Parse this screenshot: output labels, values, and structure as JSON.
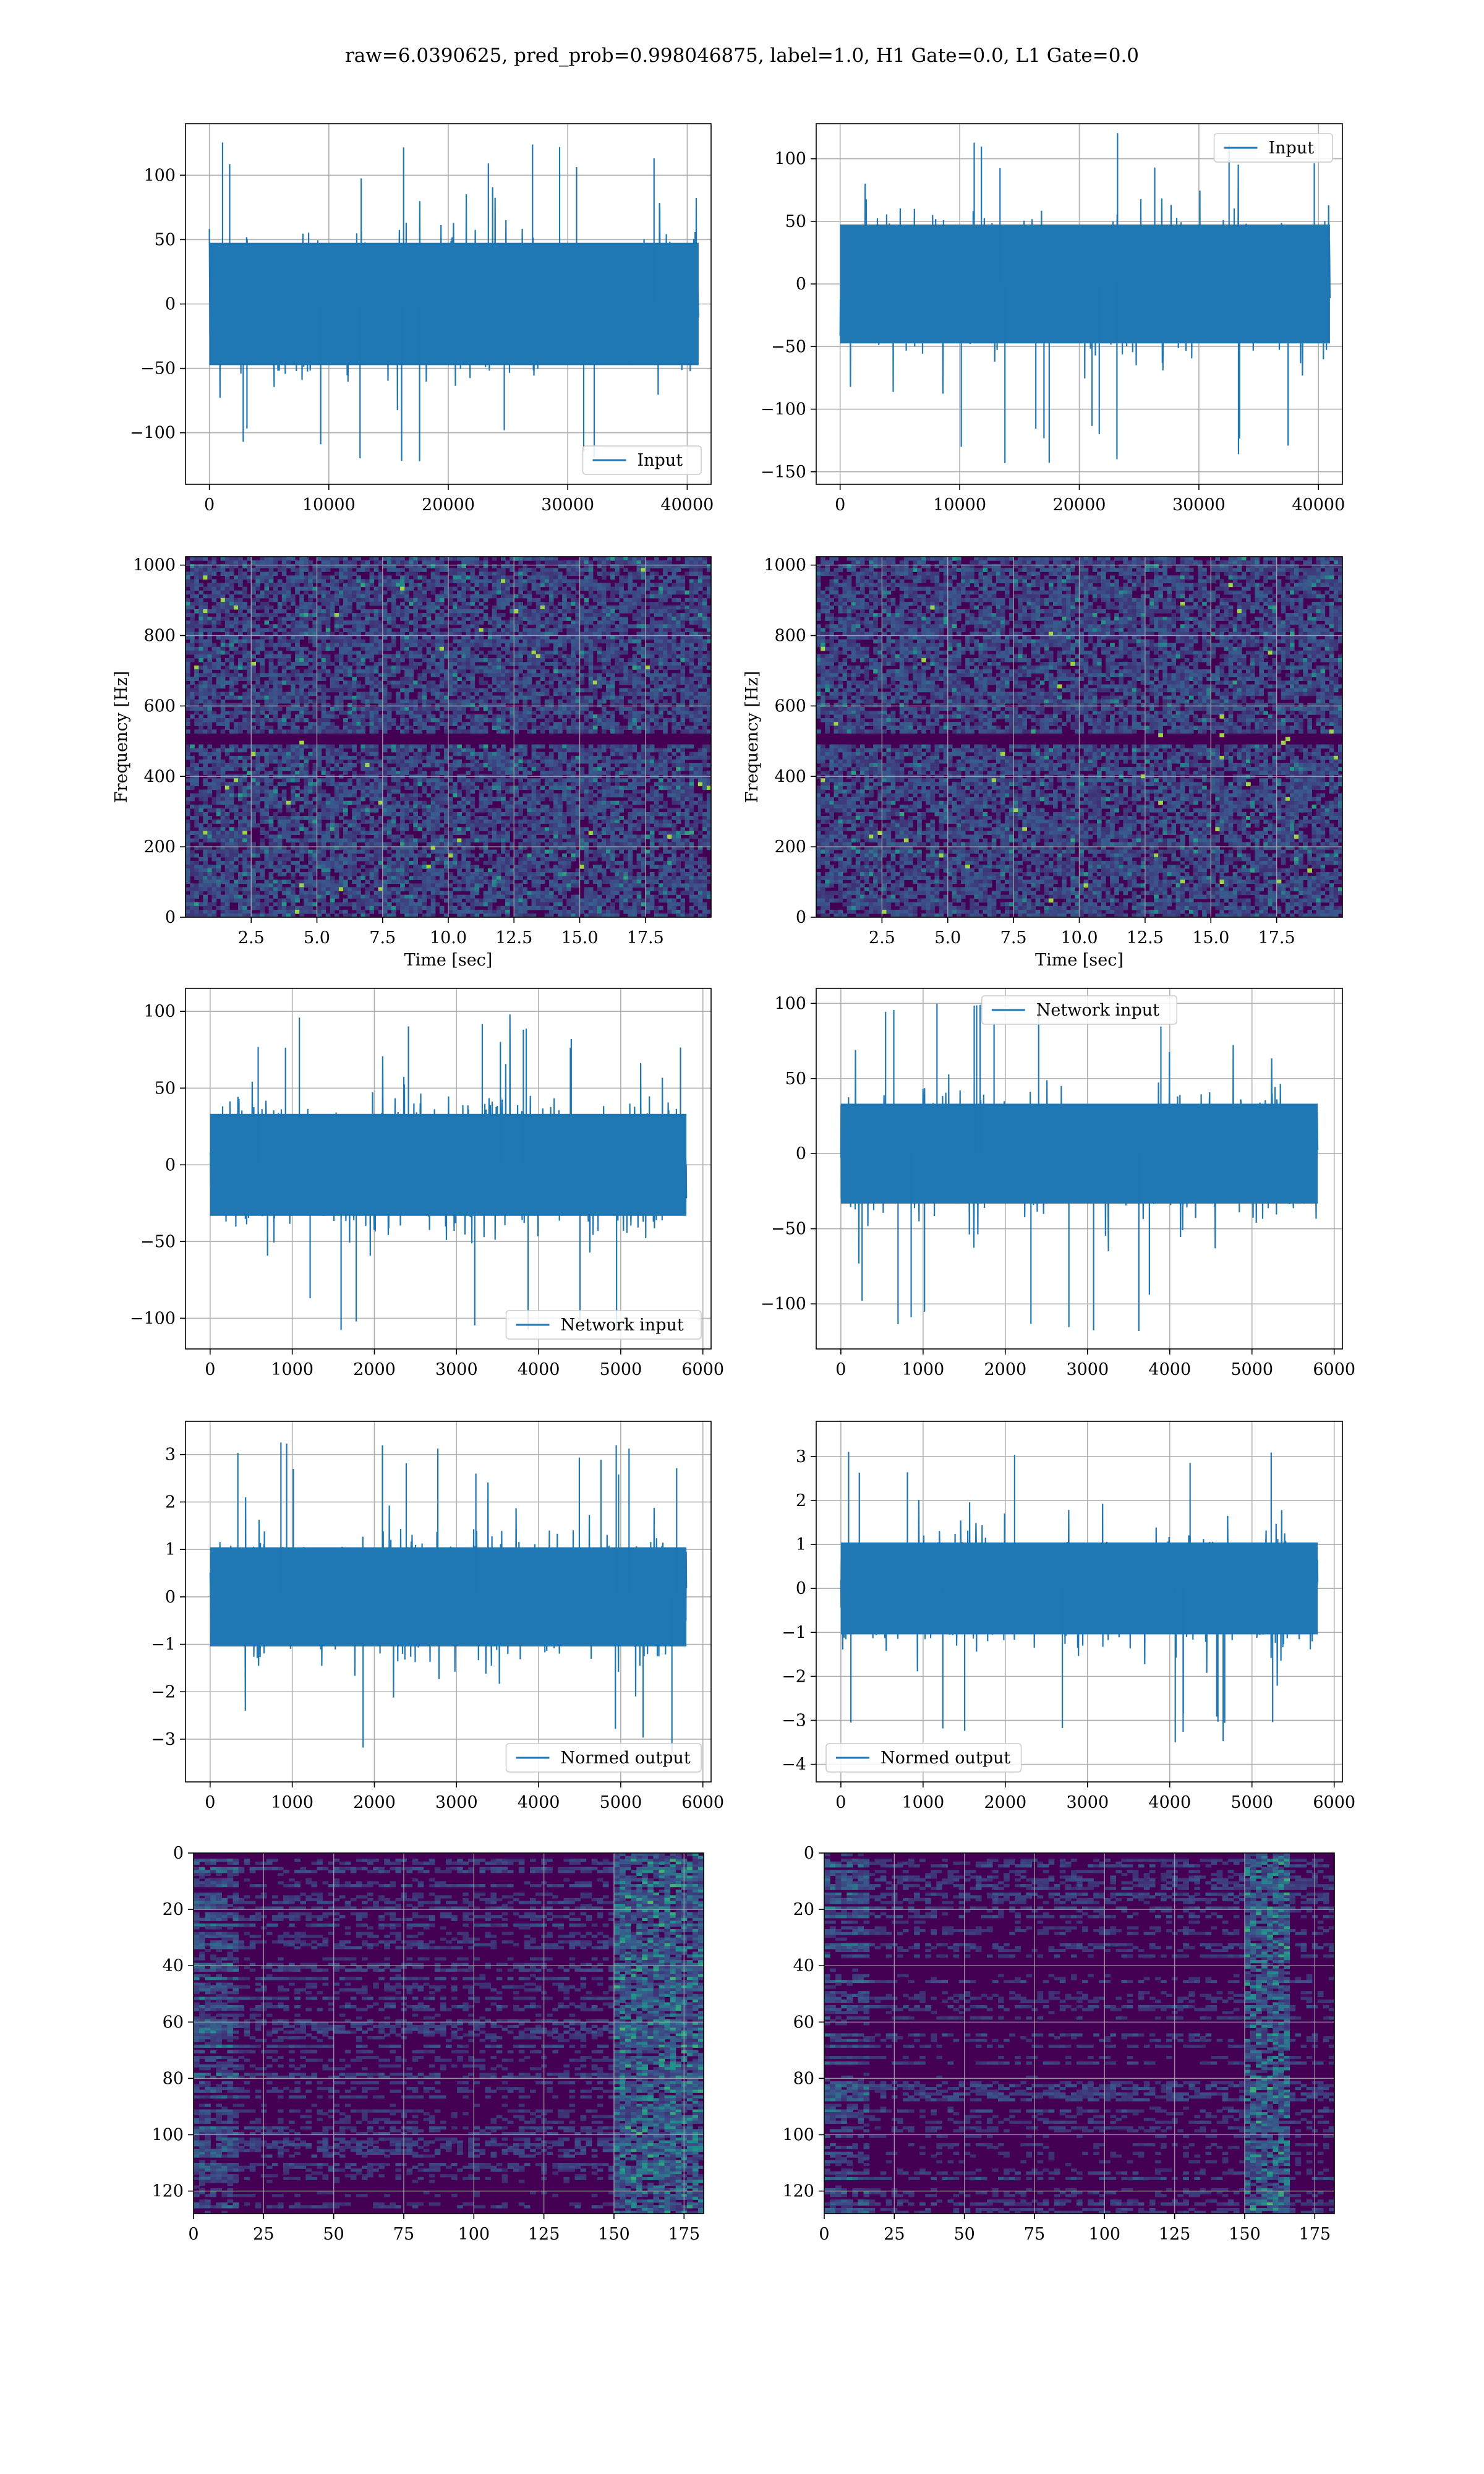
{
  "figure": {
    "suptitle": "raw=6.0390625, pred_prob=0.998046875, label=1.0, H1 Gate=0.0, L1 Gate=0.0",
    "line_color": "#1f77b4",
    "grid_color": "#b0b0b0"
  },
  "chart_data": [
    {
      "id": "r1c1",
      "type": "line",
      "legend": "Input",
      "legend_loc": "lower right",
      "xlim": [
        -2000,
        42000
      ],
      "ylim": [
        -140,
        140
      ],
      "xticks": [
        0,
        10000,
        20000,
        30000,
        40000
      ],
      "xtick_labels": [
        "0",
        "10000",
        "20000",
        "30000",
        "40000"
      ],
      "yticks": [
        -100,
        -50,
        0,
        50,
        100
      ],
      "ytick_labels": [
        "−100",
        "−50",
        "0",
        "50",
        "100"
      ],
      "x_range": [
        0,
        40960
      ],
      "core_amplitude": [
        -50,
        50
      ],
      "peak_range": [
        -128,
        128
      ],
      "burst_positions": []
    },
    {
      "id": "r1c2",
      "type": "line",
      "legend": "Input",
      "legend_loc": "upper right",
      "xlim": [
        -2000,
        42000
      ],
      "ylim": [
        -160,
        128
      ],
      "xticks": [
        0,
        10000,
        20000,
        30000,
        40000
      ],
      "xtick_labels": [
        "0",
        "10000",
        "20000",
        "30000",
        "40000"
      ],
      "yticks": [
        -150,
        -100,
        -50,
        0,
        50,
        100
      ],
      "ytick_labels": [
        "−150",
        "−100",
        "−50",
        "0",
        "50",
        "100"
      ],
      "x_range": [
        0,
        40960
      ],
      "core_amplitude": [
        -50,
        50
      ],
      "peak_range": [
        -145,
        122
      ],
      "burst_positions": []
    },
    {
      "id": "r2c1",
      "type": "heatmap",
      "xlabel": "Time [sec]",
      "ylabel": "Frequency [Hz]",
      "xlim": [
        0,
        20
      ],
      "ylim": [
        0,
        1024
      ],
      "xticks": [
        2.5,
        5.0,
        7.5,
        10.0,
        12.5,
        15.0,
        17.5
      ],
      "xtick_labels": [
        "2.5",
        "5.0",
        "7.5",
        "10.0",
        "12.5",
        "15.0",
        "17.5"
      ],
      "yticks": [
        0,
        200,
        400,
        600,
        800,
        1000
      ],
      "ytick_labels": [
        "0",
        "200",
        "400",
        "600",
        "800",
        "1000"
      ],
      "colormap": "viridis",
      "horizontal_band_hz": [
        500,
        512
      ]
    },
    {
      "id": "r2c2",
      "type": "heatmap",
      "xlabel": "Time [sec]",
      "ylabel": "Frequency [Hz]",
      "xlim": [
        0,
        20
      ],
      "ylim": [
        0,
        1024
      ],
      "xticks": [
        2.5,
        5.0,
        7.5,
        10.0,
        12.5,
        15.0,
        17.5
      ],
      "xtick_labels": [
        "2.5",
        "5.0",
        "7.5",
        "10.0",
        "12.5",
        "15.0",
        "17.5"
      ],
      "yticks": [
        0,
        200,
        400,
        600,
        800,
        1000
      ],
      "ytick_labels": [
        "0",
        "200",
        "400",
        "600",
        "800",
        "1000"
      ],
      "colormap": "viridis",
      "horizontal_band_hz": [
        500,
        512
      ]
    },
    {
      "id": "r3c1",
      "type": "line",
      "legend": "Network input",
      "legend_loc": "lower right",
      "xlim": [
        -300,
        6100
      ],
      "ylim": [
        -120,
        115
      ],
      "xticks": [
        0,
        1000,
        2000,
        3000,
        4000,
        5000,
        6000
      ],
      "xtick_labels": [
        "0",
        "1000",
        "2000",
        "3000",
        "4000",
        "5000",
        "6000"
      ],
      "yticks": [
        -100,
        -50,
        0,
        50,
        100
      ],
      "ytick_labels": [
        "−100",
        "−50",
        "0",
        "50",
        "100"
      ],
      "x_range": [
        0,
        5800
      ],
      "core_amplitude": [
        -35,
        35
      ],
      "peak_range": [
        -110,
        98
      ],
      "burst_positions": [
        600,
        2200,
        3500,
        5300
      ]
    },
    {
      "id": "r3c2",
      "type": "line",
      "legend": "Network input",
      "legend_loc": "upper center",
      "xlim": [
        -300,
        6100
      ],
      "ylim": [
        -130,
        110
      ],
      "xticks": [
        0,
        1000,
        2000,
        3000,
        4000,
        5000,
        6000
      ],
      "xtick_labels": [
        "0",
        "1000",
        "2000",
        "3000",
        "4000",
        "5000",
        "6000"
      ],
      "yticks": [
        -100,
        -50,
        0,
        50,
        100
      ],
      "ytick_labels": [
        "−100",
        "−50",
        "0",
        "50",
        "100"
      ],
      "x_range": [
        0,
        5800
      ],
      "core_amplitude": [
        -35,
        35
      ],
      "peak_range": [
        -122,
        106
      ],
      "burst_positions": [
        1500,
        5200
      ]
    },
    {
      "id": "r4c1",
      "type": "line",
      "legend": "Normed output",
      "legend_loc": "lower right",
      "xlim": [
        -300,
        6100
      ],
      "ylim": [
        -3.9,
        3.7
      ],
      "xticks": [
        0,
        1000,
        2000,
        3000,
        4000,
        5000,
        6000
      ],
      "xtick_labels": [
        "0",
        "1000",
        "2000",
        "3000",
        "4000",
        "5000",
        "6000"
      ],
      "yticks": [
        -3,
        -2,
        -1,
        0,
        1,
        2,
        3
      ],
      "ytick_labels": [
        "−3",
        "−2",
        "−1",
        "0",
        "1",
        "2",
        "3"
      ],
      "x_range": [
        0,
        5800
      ],
      "core_amplitude": [
        -1.1,
        1.1
      ],
      "peak_range": [
        -3.5,
        3.3
      ],
      "burst_positions": [
        600,
        2200,
        3500,
        5300
      ]
    },
    {
      "id": "r4c2",
      "type": "line",
      "legend": "Normed output",
      "legend_loc": "lower left",
      "xlim": [
        -300,
        6100
      ],
      "ylim": [
        -4.4,
        3.8
      ],
      "xticks": [
        0,
        1000,
        2000,
        3000,
        4000,
        5000,
        6000
      ],
      "xtick_labels": [
        "0",
        "1000",
        "2000",
        "3000",
        "4000",
        "5000",
        "6000"
      ],
      "yticks": [
        -4,
        -3,
        -2,
        -1,
        0,
        1,
        2,
        3
      ],
      "ytick_labels": [
        "−4",
        "−3",
        "−2",
        "−1",
        "0",
        "1",
        "2",
        "3"
      ],
      "x_range": [
        0,
        5800
      ],
      "core_amplitude": [
        -1.1,
        1.1
      ],
      "peak_range": [
        -3.6,
        3.4
      ],
      "burst_positions": [
        1500,
        5200
      ]
    },
    {
      "id": "r5c1",
      "type": "heatmap",
      "xlim": [
        0,
        182
      ],
      "ylim": [
        128,
        0
      ],
      "xticks": [
        0,
        25,
        50,
        75,
        100,
        125,
        150,
        175
      ],
      "xtick_labels": [
        "0",
        "25",
        "50",
        "75",
        "100",
        "125",
        "150",
        "175"
      ],
      "yticks": [
        0,
        20,
        40,
        60,
        80,
        100,
        120
      ],
      "ytick_labels": [
        "0",
        "20",
        "40",
        "60",
        "80",
        "100",
        "120"
      ],
      "colormap": "viridis",
      "bright_columns": [
        150,
        182
      ]
    },
    {
      "id": "r5c2",
      "type": "heatmap",
      "xlim": [
        0,
        182
      ],
      "ylim": [
        128,
        0
      ],
      "xticks": [
        0,
        25,
        50,
        75,
        100,
        125,
        150,
        175
      ],
      "xtick_labels": [
        "0",
        "25",
        "50",
        "75",
        "100",
        "125",
        "150",
        "175"
      ],
      "yticks": [
        0,
        20,
        40,
        60,
        80,
        100,
        120
      ],
      "ytick_labels": [
        "0",
        "20",
        "40",
        "60",
        "80",
        "100",
        "120"
      ],
      "colormap": "viridis",
      "bright_columns": [
        150,
        165
      ]
    }
  ]
}
